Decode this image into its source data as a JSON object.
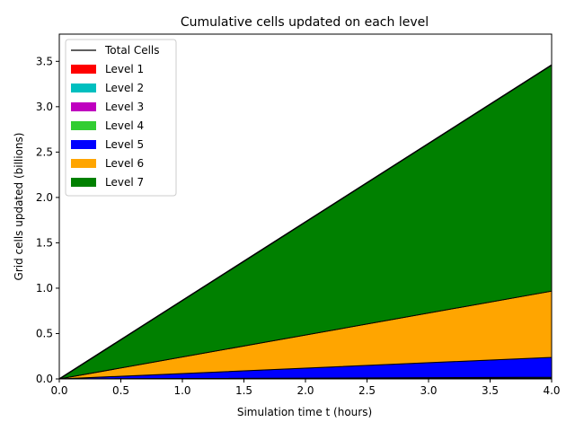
{
  "chart_data": {
    "type": "area",
    "title": "Cumulative cells updated on each level",
    "xlabel": "Simulation time t (hours)",
    "ylabel": "Grid cells updated (billions)",
    "xlim": [
      0,
      4.0
    ],
    "ylim": [
      0,
      3.8
    ],
    "xticks": [
      "0.0",
      "0.5",
      "1.0",
      "1.5",
      "2.0",
      "2.5",
      "3.0",
      "3.5",
      "4.0"
    ],
    "yticks": [
      "0.0",
      "0.5",
      "1.0",
      "1.5",
      "2.0",
      "2.5",
      "3.0",
      "3.5"
    ],
    "grid": false,
    "legend_position": "top-left",
    "stacked": true,
    "x": [
      0,
      4.0
    ],
    "series": [
      {
        "name": "Level 1",
        "color": "#ff0000",
        "values": [
          0,
          0.001
        ]
      },
      {
        "name": "Level 2",
        "color": "#00bfbf",
        "values": [
          0,
          0.002
        ]
      },
      {
        "name": "Level 3",
        "color": "#bf00bf",
        "values": [
          0,
          0.005
        ]
      },
      {
        "name": "Level 4",
        "color": "#32cd32",
        "values": [
          0,
          0.01
        ]
      },
      {
        "name": "Level 5",
        "color": "#0000ff",
        "values": [
          0,
          0.22
        ]
      },
      {
        "name": "Level 6",
        "color": "#ffa500",
        "values": [
          0,
          0.73
        ]
      },
      {
        "name": "Level 7",
        "color": "#008000",
        "values": [
          0,
          2.49
        ]
      }
    ],
    "total_line": {
      "name": "Total Cells",
      "color": "#000000",
      "values": [
        0,
        3.46
      ]
    }
  }
}
